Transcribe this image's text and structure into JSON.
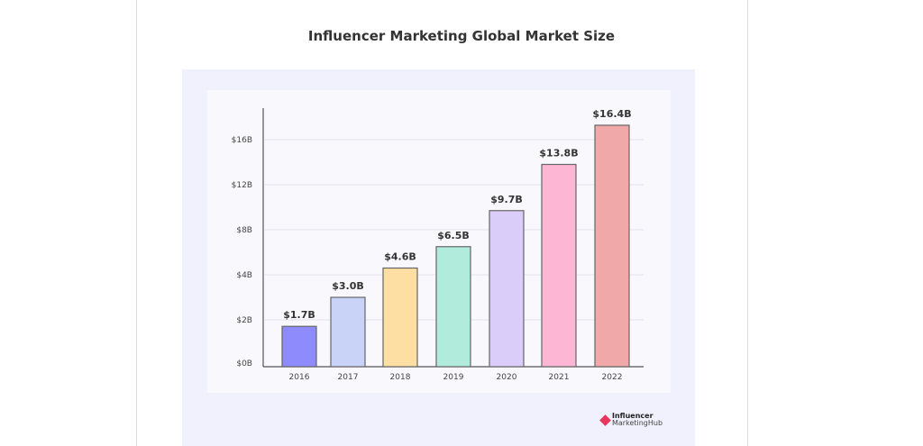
{
  "chart_data": {
    "type": "bar",
    "title": "Influencer Marketing Global Market Size",
    "categories": [
      "2016",
      "2017",
      "2018",
      "2019",
      "2020",
      "2021",
      "2022"
    ],
    "values": [
      1.7,
      3.0,
      4.6,
      6.5,
      9.7,
      13.8,
      16.4
    ],
    "data_labels": [
      "$1.7B",
      "$3.0B",
      "$4.6B",
      "$6.5B",
      "$9.7B",
      "$13.8B",
      "$16.4B"
    ],
    "unit": "billion USD",
    "y_ticks": [
      0,
      2,
      4,
      8,
      12,
      16
    ],
    "y_tick_labels": [
      "$0B",
      "$2B",
      "$4B",
      "$8B",
      "$12B",
      "$16B"
    ],
    "xlabel": "",
    "ylabel": "",
    "grid": true,
    "legend": "none",
    "bar_colors": [
      "#8e8cfc",
      "#c9d3f7",
      "#fddea3",
      "#b0ebdb",
      "#dbcdfa",
      "#fdb6d3",
      "#f0a8a8"
    ]
  },
  "branding": {
    "line1": "Influencer",
    "line2": "MarketingHub",
    "accent": "#e8365d"
  }
}
